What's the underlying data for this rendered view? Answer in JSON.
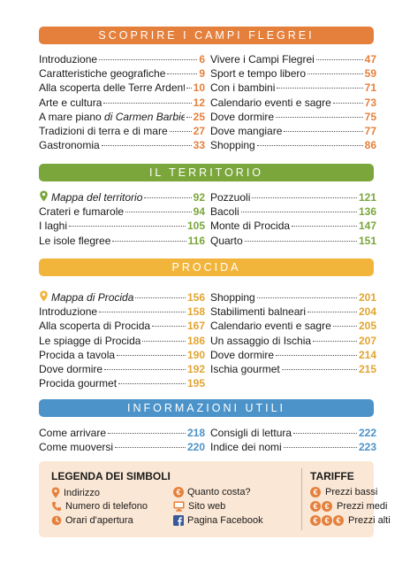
{
  "sections": {
    "s1": {
      "title": "SCOPRIRE I CAMPI FLEGREI",
      "left": [
        {
          "title": "Introduzione",
          "page": "6"
        },
        {
          "title": "Caratteristiche geografiche",
          "page": "9"
        },
        {
          "title": "Alla scoperta delle Terre Ardenti",
          "page": "10"
        },
        {
          "title": "Arte e cultura",
          "page": "12"
        },
        {
          "title": "A mare piano ",
          "author": "di Carmen Barbieri",
          "page": "25"
        },
        {
          "title": "Tradizioni di terra e di mare",
          "page": "27"
        },
        {
          "title": "Gastronomia",
          "page": "33"
        }
      ],
      "right": [
        {
          "title": "Vivere i Campi Flegrei",
          "page": "47"
        },
        {
          "title": "Sport e tempo libero",
          "page": "59"
        },
        {
          "title": "Con i bambini",
          "page": "71"
        },
        {
          "title": "Calendario eventi e sagre",
          "page": "73"
        },
        {
          "title": "Dove dormire",
          "page": "75"
        },
        {
          "title": "Dove mangiare",
          "page": "77"
        },
        {
          "title": "Shopping",
          "page": "86"
        }
      ]
    },
    "s2": {
      "title": "IL TERRITORIO",
      "left": [
        {
          "title": "Mappa del territorio",
          "page": "92"
        },
        {
          "title": "Crateri e fumarole",
          "page": "94"
        },
        {
          "title": "I laghi",
          "page": "105"
        },
        {
          "title": "Le isole flegree",
          "page": "116"
        }
      ],
      "right": [
        {
          "title": "Pozzuoli",
          "page": "121"
        },
        {
          "title": "Bacoli",
          "page": "136"
        },
        {
          "title": "Monte di Procida",
          "page": "147"
        },
        {
          "title": "Quarto",
          "page": "151"
        }
      ]
    },
    "s3": {
      "title": "PROCIDA",
      "left": [
        {
          "title": "Mappa di Procida",
          "page": "156"
        },
        {
          "title": "Introduzione",
          "page": "158"
        },
        {
          "title": "Alla scoperta di Procida",
          "page": "167"
        },
        {
          "title": "Le spiagge di Procida",
          "page": "186"
        },
        {
          "title": "Procida a tavola",
          "page": "190"
        },
        {
          "title": "Dove dormire",
          "page": "192"
        },
        {
          "title": "Procida gourmet",
          "page": "195"
        }
      ],
      "right": [
        {
          "title": "Shopping",
          "page": "201"
        },
        {
          "title": "Stabilimenti balneari",
          "page": "204"
        },
        {
          "title": "Calendario eventi e sagre",
          "page": "205"
        },
        {
          "title": "Un assaggio di Ischia",
          "page": "207"
        },
        {
          "title": "Dove dormire",
          "page": "214"
        },
        {
          "title": "Ischia gourmet",
          "page": "215"
        }
      ]
    },
    "s4": {
      "title": "INFORMAZIONI UTILI",
      "left": [
        {
          "title": "Come arrivare",
          "page": "218"
        },
        {
          "title": "Come muoversi",
          "page": "220"
        }
      ],
      "right": [
        {
          "title": "Consigli di lettura",
          "page": "222"
        },
        {
          "title": "Indice dei nomi",
          "page": "223"
        }
      ]
    }
  },
  "legend": {
    "title": "LEGENDA DEI SIMBOLI",
    "address": "Indirizzo",
    "phone": "Numero di telefono",
    "hours": "Orari d'apertura",
    "cost": "Quanto costa?",
    "website": "Sito web",
    "facebook": "Pagina Facebook"
  },
  "tariffe": {
    "title": "TARIFFE",
    "low": "Prezzi bassi",
    "mid": "Prezzi medi",
    "high": "Prezzi alti",
    "symbol": "€"
  },
  "colors": {
    "orange": "#e5803c",
    "green": "#7aa63b",
    "yellow": "#f2b53c",
    "blue": "#4b93c9",
    "legend_bg": "#fbe7d5"
  }
}
